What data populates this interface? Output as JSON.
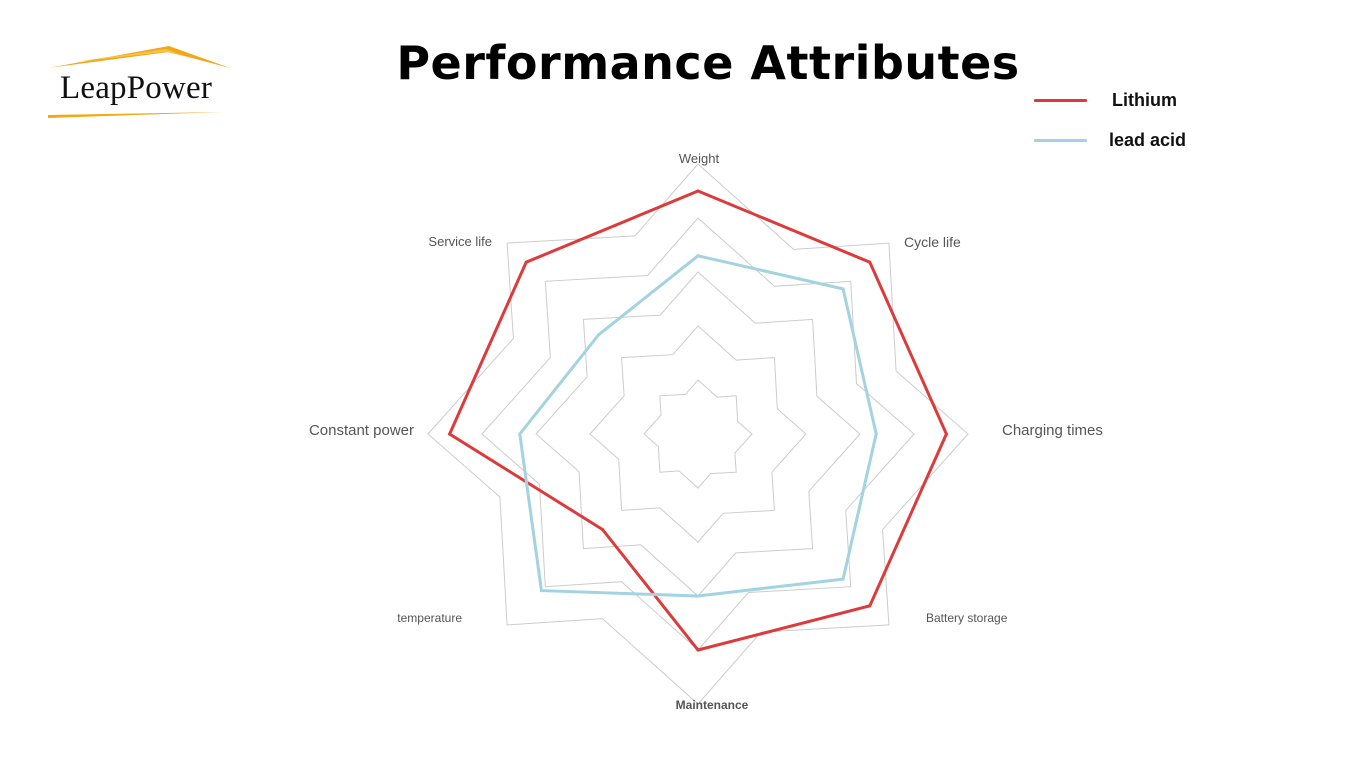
{
  "logo": {
    "text": "LeapPower",
    "color": "#f0a818"
  },
  "title": "Performance Attributes",
  "chart_data": {
    "type": "radar",
    "title": "Performance Attributes",
    "axes": [
      "Weight",
      "Cycle life",
      "Charging times",
      "Battery storage",
      "Maintenance",
      "temperature",
      "Constant power",
      "Service life"
    ],
    "rmax": 5,
    "rings": 5,
    "grid": true,
    "legend_position": "top-right",
    "series": [
      {
        "name": "Lithium",
        "color": "#dd3b3b",
        "values": [
          4.5,
          4.5,
          4.6,
          4.5,
          4.0,
          2.5,
          4.6,
          4.5
        ]
      },
      {
        "name": "lead acid",
        "color": "#a3d3e1",
        "values": [
          3.3,
          3.8,
          3.3,
          3.8,
          3.0,
          4.1,
          3.3,
          2.6
        ]
      }
    ]
  },
  "legend": [
    {
      "label": "Lithium",
      "color": "#dd3b3b"
    },
    {
      "label": "lead acid",
      "color": "#a3d3e1"
    }
  ]
}
